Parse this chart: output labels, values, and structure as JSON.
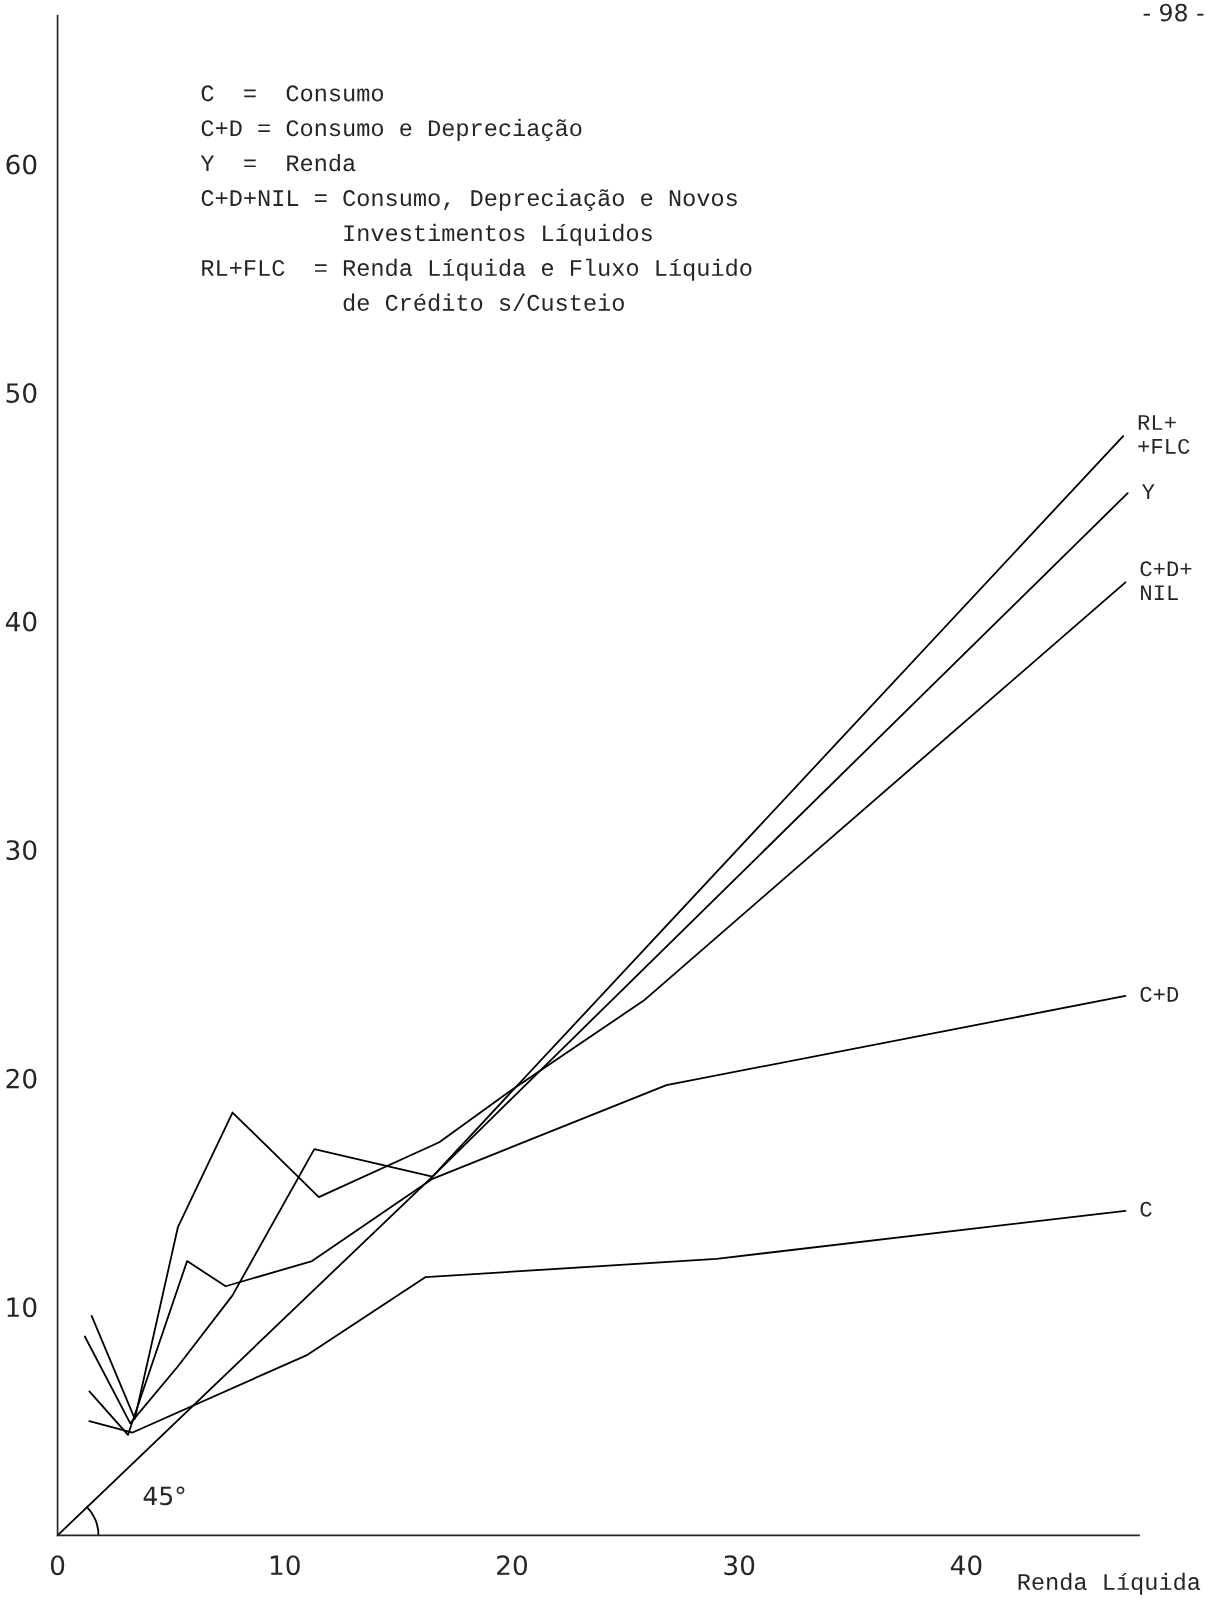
{
  "chart_data": {
    "type": "line",
    "xlabel": "Renda Líquida",
    "xlim": [
      0,
      47.6
    ],
    "ylim": [
      0,
      66.5
    ],
    "xticks": [
      0,
      10,
      20,
      30,
      40
    ],
    "yticks": [
      10,
      20,
      30,
      40,
      50,
      60
    ],
    "grid": false,
    "legend": false,
    "series": [
      {
        "name": "RL+\n+FLC",
        "color": "#000000",
        "x": [
          1.2,
          3.2,
          5.3,
          7.7,
          11.3,
          16.5,
          46.9
        ],
        "values": [
          8.7,
          4.9,
          7.4,
          10.5,
          16.9,
          15.7,
          48.1
        ]
      },
      {
        "name": "Y",
        "color": "#000000",
        "x": [
          0,
          16.5,
          47.1
        ],
        "values": [
          0,
          15.7,
          45.6
        ]
      },
      {
        "name": "C+D+\nNIL",
        "color": "#000000",
        "x": [
          1.5,
          3.4,
          5.3,
          7.7,
          11.5,
          16.8,
          20.0,
          25.8,
          47.0
        ],
        "values": [
          9.6,
          5.1,
          13.5,
          18.5,
          14.8,
          17.2,
          19.5,
          23.4,
          41.7
        ]
      },
      {
        "name": "C+D",
        "color": "#000000",
        "x": [
          1.4,
          3.1,
          5.7,
          7.4,
          11.2,
          16.5,
          26.8,
          47.0
        ],
        "values": [
          6.3,
          4.4,
          12.0,
          10.9,
          12.0,
          15.6,
          19.7,
          23.6
        ]
      },
      {
        "name": "C",
        "color": "#000000",
        "x": [
          1.4,
          3.3,
          11.0,
          16.2,
          29.0,
          47.0
        ],
        "values": [
          5.0,
          4.5,
          7.9,
          11.3,
          12.1,
          14.2
        ]
      }
    ],
    "annotations": [
      "C  =  Consumo\nC+D = Consumo e Depreciação\nY  =  Renda\nC+D+NIL = Consumo, Depreciação e Novos\n          Investimentos Líquidos\nRL+FLC  = Renda Líquida e Fluxo Líquido\n          de Crédito s/Custeio",
      "45°",
      "- 98 -"
    ]
  }
}
